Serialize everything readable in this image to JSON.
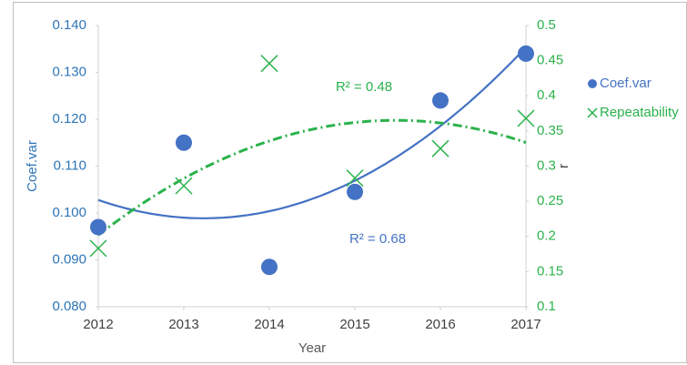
{
  "chart_data": {
    "type": "scatter",
    "x_label": "Year",
    "y_label": "Coef.var",
    "y2_label": "r",
    "x": [
      2012,
      2013,
      2014,
      2015,
      2016,
      2017
    ],
    "xlim": [
      2012,
      2017
    ],
    "xticks": [
      2012,
      2013,
      2014,
      2015,
      2016,
      2017
    ],
    "ylim": [
      0.08,
      0.14
    ],
    "yticks": [
      {
        "value": 0.08,
        "label": "0.080"
      },
      {
        "value": 0.09,
        "label": "0.090"
      },
      {
        "value": 0.1,
        "label": "0.100"
      },
      {
        "value": 0.11,
        "label": "0.110"
      },
      {
        "value": 0.12,
        "label": "0.120"
      },
      {
        "value": 0.13,
        "label": "0.130"
      },
      {
        "value": 0.14,
        "label": "0.140"
      }
    ],
    "y2lim": [
      0.1,
      0.5
    ],
    "y2ticks": [
      0.1,
      0.15,
      0.2,
      0.25,
      0.3,
      0.35,
      0.4,
      0.45,
      0.5
    ],
    "trendline": "polynomial",
    "trendline_order": 2,
    "legend": "right",
    "series": [
      {
        "name": "Coef.var",
        "color": "#4472c4",
        "marker": "circle",
        "axis": "y",
        "values": [
          0.097,
          0.115,
          0.0885,
          0.1045,
          0.124,
          0.134
        ]
      },
      {
        "name": "Repeatability",
        "color": "#2bb24c",
        "marker": "x",
        "axis": "y2",
        "values": [
          0.183,
          0.272,
          0.446,
          0.283,
          0.325,
          0.368
        ]
      }
    ],
    "annotations": [
      {
        "text": "R² = 0.48",
        "series": 1
      },
      {
        "text": "R² = 0.68",
        "series": 0
      }
    ]
  }
}
